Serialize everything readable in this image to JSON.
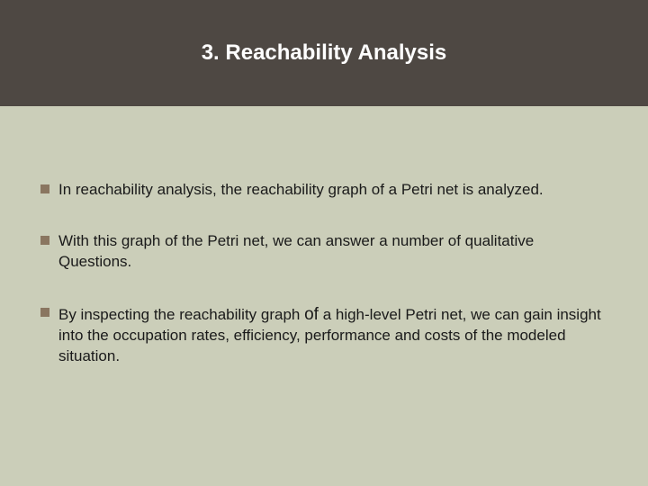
{
  "slide": {
    "title": "3. Reachability Analysis",
    "header_bg_color": "#4e4843",
    "body_bg_color": "#cbceb9",
    "title_color": "#ffffff",
    "title_fontsize": 24,
    "bullet_marker_color": "#8a7660",
    "text_color": "#1a1a1a",
    "text_fontsize": 17,
    "bullets": [
      {
        "text": "In reachability analysis, the reachability graph of a Petri net is analyzed."
      },
      {
        "text": "With this graph of the Petri net, we can answer a number of qualitative Questions."
      },
      {
        "text_before": "By inspecting the reachability graph ",
        "emph": "of",
        "text_after": " a high-level Petri net, we can gain insight into the occupation rates, efficiency, performance and costs of the modeled situation."
      }
    ]
  }
}
